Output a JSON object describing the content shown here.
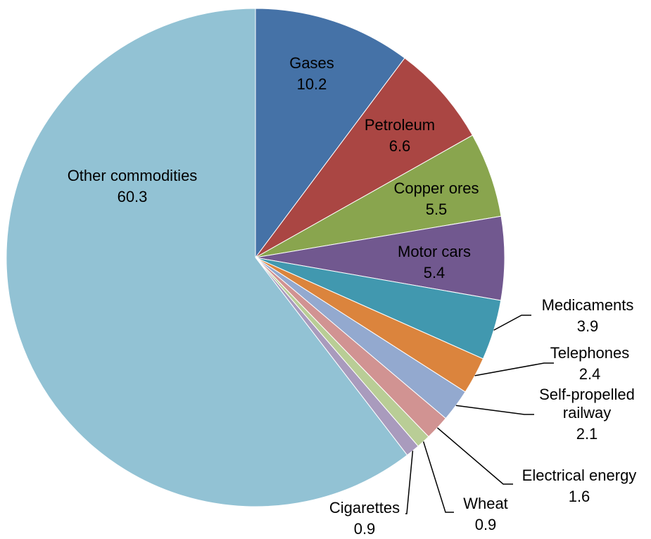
{
  "chart_data": {
    "type": "pie",
    "title": "",
    "start_angle": "12 o'clock",
    "direction": "clockwise",
    "slices": [
      {
        "label": "Gases",
        "value": 10.2,
        "value_label": "10.2",
        "color": "#4572A7"
      },
      {
        "label": "Petroleum",
        "value": 6.6,
        "value_label": "6.6",
        "color": "#AA4643"
      },
      {
        "label": "Copper ores",
        "value": 5.5,
        "value_label": "5.5",
        "color": "#89A54E"
      },
      {
        "label": "Motor cars",
        "value": 5.4,
        "value_label": "5.4",
        "color": "#71588F"
      },
      {
        "label": "Medicaments",
        "value": 3.9,
        "value_label": "3.9",
        "color": "#4198AF"
      },
      {
        "label": "Telephones",
        "value": 2.4,
        "value_label": "2.4",
        "color": "#DB843D"
      },
      {
        "label": "Self-propelled railway",
        "label_lines": [
          "Self-propelled",
          "railway"
        ],
        "value": 2.1,
        "value_label": "2.1",
        "color": "#93A9CF"
      },
      {
        "label": "Electrical energy",
        "value": 1.6,
        "value_label": "1.6",
        "color": "#D19392"
      },
      {
        "label": "Wheat",
        "value": 0.9,
        "value_label": "0.9",
        "color": "#B9CD96"
      },
      {
        "label": "Cigarettes",
        "value": 0.9,
        "value_label": "0.9",
        "color": "#A99BBD"
      },
      {
        "label": "Other commodities",
        "value": 60.3,
        "value_label": "60.3",
        "color": "#92C2D4"
      }
    ]
  }
}
